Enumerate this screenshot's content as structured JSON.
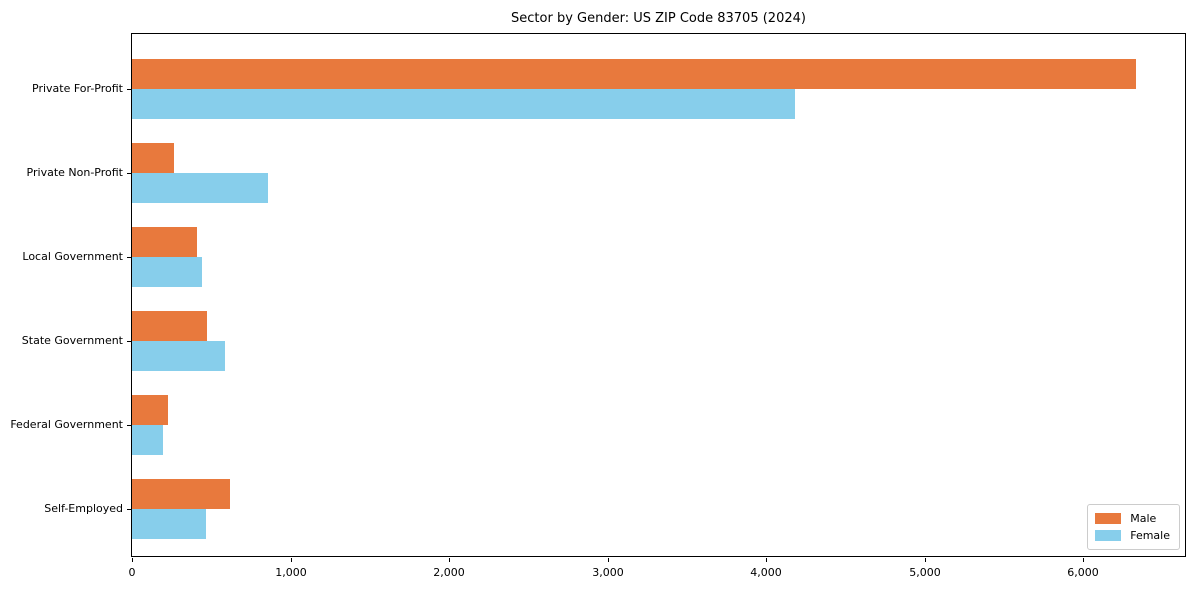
{
  "chart_data": {
    "type": "bar",
    "orientation": "horizontal",
    "title": "Sector by Gender: US ZIP Code 83705 (2024)",
    "categories": [
      "Private For-Profit",
      "Private Non-Profit",
      "Local Government",
      "State Government",
      "Federal Government",
      "Self-Employed"
    ],
    "series": [
      {
        "name": "Male",
        "color": "#E8793D",
        "values": [
          6335,
          265,
          410,
          475,
          227,
          618
        ]
      },
      {
        "name": "Female",
        "color": "#87CEEB",
        "values": [
          4185,
          860,
          442,
          587,
          196,
          467
        ]
      }
    ],
    "xlabel": "",
    "ylabel": "",
    "xlim": [
      0,
      6656
    ],
    "xticks": [
      0,
      1000,
      2000,
      3000,
      4000,
      5000,
      6000
    ],
    "xtick_labels": [
      "0",
      "1,000",
      "2,000",
      "3,000",
      "4,000",
      "5,000",
      "6,000"
    ],
    "grid": false,
    "legend": {
      "position": "lower right",
      "entries": [
        "Male",
        "Female"
      ]
    }
  }
}
